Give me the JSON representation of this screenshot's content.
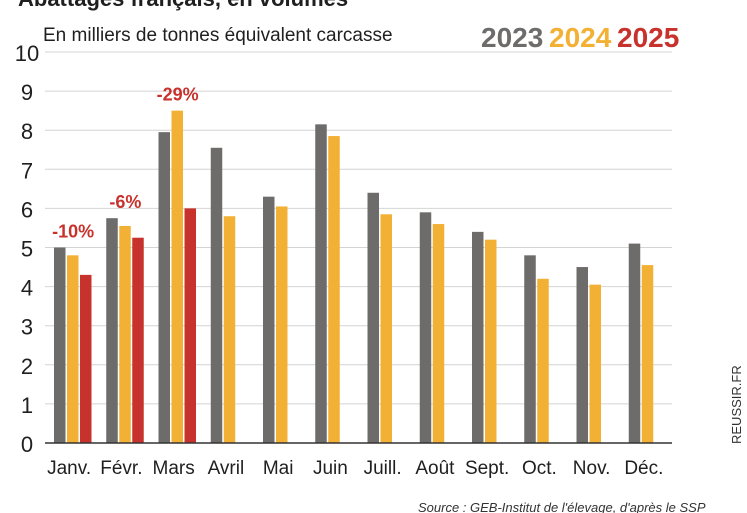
{
  "chart_data": {
    "type": "bar",
    "title": "Abattages français, en volumes",
    "subtitle": "En milliers de tonnes équivalent carcasse",
    "categories": [
      "Janv.",
      "Févr.",
      "Mars",
      "Avril",
      "Mai",
      "Juin",
      "Juill.",
      "Août",
      "Sept.",
      "Oct.",
      "Nov.",
      "Déc."
    ],
    "series": [
      {
        "name": "2023",
        "color": "#6d6c6b",
        "values": [
          5.0,
          5.75,
          7.95,
          7.55,
          6.3,
          8.15,
          6.4,
          5.9,
          5.4,
          4.8,
          4.5,
          5.1
        ]
      },
      {
        "name": "2024",
        "color": "#f2b134",
        "values": [
          4.8,
          5.55,
          8.5,
          5.8,
          6.05,
          7.85,
          5.85,
          5.6,
          5.2,
          4.2,
          4.05,
          4.55
        ]
      },
      {
        "name": "2025",
        "color": "#c8322d",
        "values": [
          4.3,
          5.25,
          6.0,
          null,
          null,
          null,
          null,
          null,
          null,
          null,
          null,
          null
        ]
      }
    ],
    "annotations": [
      {
        "category": "Janv.",
        "text": "-10%"
      },
      {
        "category": "Févr.",
        "text": "-6%"
      },
      {
        "category": "Mars",
        "text": "-29%"
      }
    ],
    "ylim": [
      0,
      10
    ],
    "yticks": [
      "0",
      "1",
      "2",
      "3",
      "4",
      "5",
      "6",
      "7",
      "8",
      "9",
      "10"
    ],
    "grid": true,
    "legend": "top-right",
    "annotation_color": "#c8322d"
  },
  "side_credit": "REUSSIR.FR",
  "source": "Source : GEB-Institut de l'élevage, d'après le SSP"
}
